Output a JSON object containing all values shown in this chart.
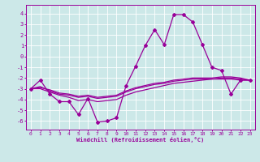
{
  "xlabel": "Windchill (Refroidissement éolien,°C)",
  "background_color": "#cce8e8",
  "grid_color": "#ffffff",
  "line_color": "#990099",
  "xlim": [
    -0.5,
    23.5
  ],
  "ylim": [
    -6.8,
    4.8
  ],
  "yticks": [
    -6,
    -5,
    -4,
    -3,
    -2,
    -1,
    0,
    1,
    2,
    3,
    4
  ],
  "xticks": [
    0,
    1,
    2,
    3,
    4,
    5,
    6,
    7,
    8,
    9,
    10,
    11,
    12,
    13,
    14,
    15,
    16,
    17,
    18,
    19,
    20,
    21,
    22,
    23
  ],
  "series1": [
    [
      0,
      -3.0
    ],
    [
      1,
      -2.2
    ],
    [
      2,
      -3.5
    ],
    [
      3,
      -4.2
    ],
    [
      4,
      -4.2
    ],
    [
      5,
      -5.4
    ],
    [
      6,
      -3.9
    ],
    [
      7,
      -6.1
    ],
    [
      8,
      -6.0
    ],
    [
      9,
      -5.7
    ],
    [
      10,
      -2.7
    ],
    [
      11,
      -0.9
    ],
    [
      12,
      1.0
    ],
    [
      13,
      2.5
    ],
    [
      14,
      1.1
    ],
    [
      15,
      3.9
    ],
    [
      16,
      3.9
    ],
    [
      17,
      3.2
    ],
    [
      18,
      1.1
    ],
    [
      19,
      -1.0
    ],
    [
      20,
      -1.3
    ],
    [
      21,
      -3.5
    ],
    [
      22,
      -2.2
    ],
    [
      23,
      -2.2
    ]
  ],
  "series2": [
    [
      0,
      -3.0
    ],
    [
      1,
      -2.8
    ],
    [
      2,
      -3.2
    ],
    [
      3,
      -3.5
    ],
    [
      4,
      -3.6
    ],
    [
      5,
      -3.8
    ],
    [
      6,
      -3.7
    ],
    [
      7,
      -3.9
    ],
    [
      8,
      -3.8
    ],
    [
      9,
      -3.7
    ],
    [
      10,
      -3.3
    ],
    [
      11,
      -3.0
    ],
    [
      12,
      -2.8
    ],
    [
      13,
      -2.6
    ],
    [
      14,
      -2.5
    ],
    [
      15,
      -2.3
    ],
    [
      16,
      -2.2
    ],
    [
      17,
      -2.1
    ],
    [
      18,
      -2.1
    ],
    [
      19,
      -2.1
    ],
    [
      20,
      -2.1
    ],
    [
      21,
      -2.1
    ],
    [
      22,
      -2.2
    ],
    [
      23,
      -2.2
    ]
  ],
  "series3": [
    [
      0,
      -3.0
    ],
    [
      1,
      -3.0
    ],
    [
      2,
      -3.3
    ],
    [
      3,
      -3.6
    ],
    [
      4,
      -3.8
    ],
    [
      5,
      -4.1
    ],
    [
      6,
      -4.0
    ],
    [
      7,
      -4.2
    ],
    [
      8,
      -4.1
    ],
    [
      9,
      -4.0
    ],
    [
      10,
      -3.6
    ],
    [
      11,
      -3.3
    ],
    [
      12,
      -3.1
    ],
    [
      13,
      -2.9
    ],
    [
      14,
      -2.7
    ],
    [
      15,
      -2.5
    ],
    [
      16,
      -2.4
    ],
    [
      17,
      -2.3
    ],
    [
      18,
      -2.2
    ],
    [
      19,
      -2.1
    ],
    [
      20,
      -2.0
    ],
    [
      21,
      -2.0
    ],
    [
      22,
      -2.1
    ],
    [
      23,
      -2.2
    ]
  ],
  "series4": [
    [
      0,
      -3.0
    ],
    [
      1,
      -2.9
    ],
    [
      2,
      -3.1
    ],
    [
      3,
      -3.4
    ],
    [
      4,
      -3.5
    ],
    [
      5,
      -3.7
    ],
    [
      6,
      -3.6
    ],
    [
      7,
      -3.8
    ],
    [
      8,
      -3.7
    ],
    [
      9,
      -3.6
    ],
    [
      10,
      -3.2
    ],
    [
      11,
      -2.9
    ],
    [
      12,
      -2.7
    ],
    [
      13,
      -2.5
    ],
    [
      14,
      -2.4
    ],
    [
      15,
      -2.2
    ],
    [
      16,
      -2.1
    ],
    [
      17,
      -2.0
    ],
    [
      18,
      -2.0
    ],
    [
      19,
      -2.0
    ],
    [
      20,
      -1.9
    ],
    [
      21,
      -1.9
    ],
    [
      22,
      -2.0
    ],
    [
      23,
      -2.2
    ]
  ]
}
